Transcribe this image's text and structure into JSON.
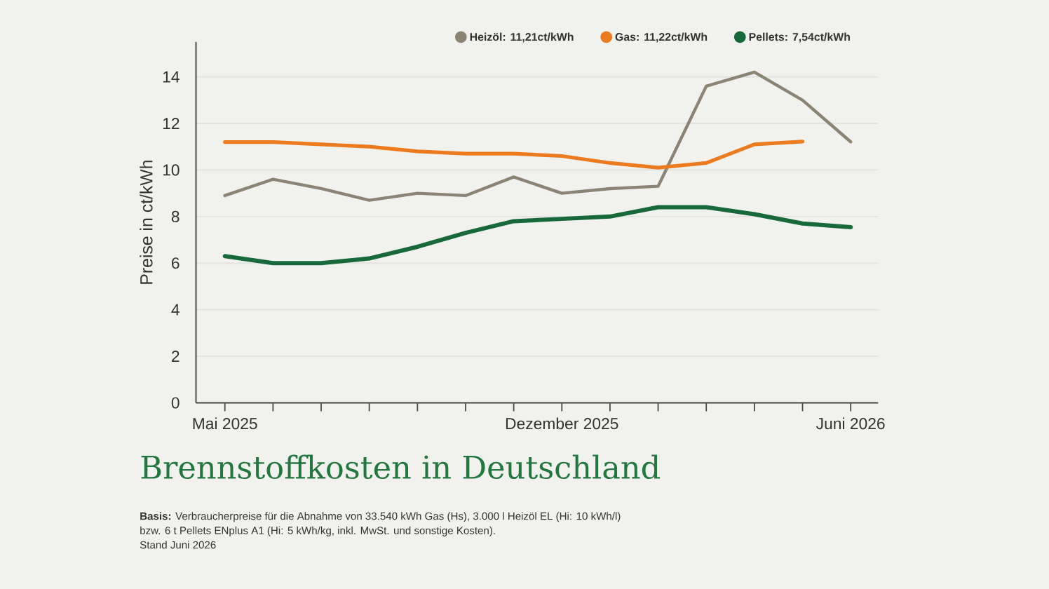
{
  "chart_data": {
    "type": "line",
    "title": "Brennstoffkosten in Deutschland",
    "ylabel": "Preise in ct/kWh",
    "categories": [
      "Mai 2025",
      null,
      null,
      null,
      null,
      null,
      null,
      "Dezember 2025",
      null,
      null,
      null,
      null,
      null,
      "Juni 2026"
    ],
    "series": [
      {
        "name": "Heizöl: 11,21ct/kWh",
        "color": "#8b8373",
        "values": [
          8.9,
          9.6,
          9.2,
          8.7,
          9.0,
          8.9,
          9.7,
          9.0,
          9.2,
          9.3,
          13.6,
          14.2,
          13.0,
          11.21
        ]
      },
      {
        "name": "Gas: 11,22ct/kWh",
        "color": "#ec7a1e",
        "values": [
          11.2,
          11.2,
          11.1,
          11.0,
          10.8,
          10.7,
          10.7,
          10.6,
          10.3,
          10.1,
          10.3,
          11.1,
          11.22,
          null
        ]
      },
      {
        "name": "Pellets: 7,54ct/kWh",
        "color": "#17693a",
        "values": [
          6.3,
          6.0,
          6.0,
          6.2,
          6.7,
          7.3,
          7.8,
          7.9,
          8.0,
          8.4,
          8.4,
          8.1,
          7.7,
          7.54
        ]
      }
    ],
    "ylim": [
      0,
      15.5
    ],
    "yticks": [
      0,
      2,
      4,
      6,
      8,
      10,
      12,
      14
    ],
    "grid": "y",
    "legend": "top right",
    "annotations": [
      "**Basis:** Verbraucherpreise für die Abnahme von 33.540 kWh Gas (Hs), 3.000 l Heizöl EL (Hi: 10 kWh/l)",
      "bzw. 6 t Pellets ENplus A1 (Hi: 5 kWh/kg, inkl. MwSt. und sonstige Kosten).",
      "Stand Juni 2026"
    ]
  }
}
